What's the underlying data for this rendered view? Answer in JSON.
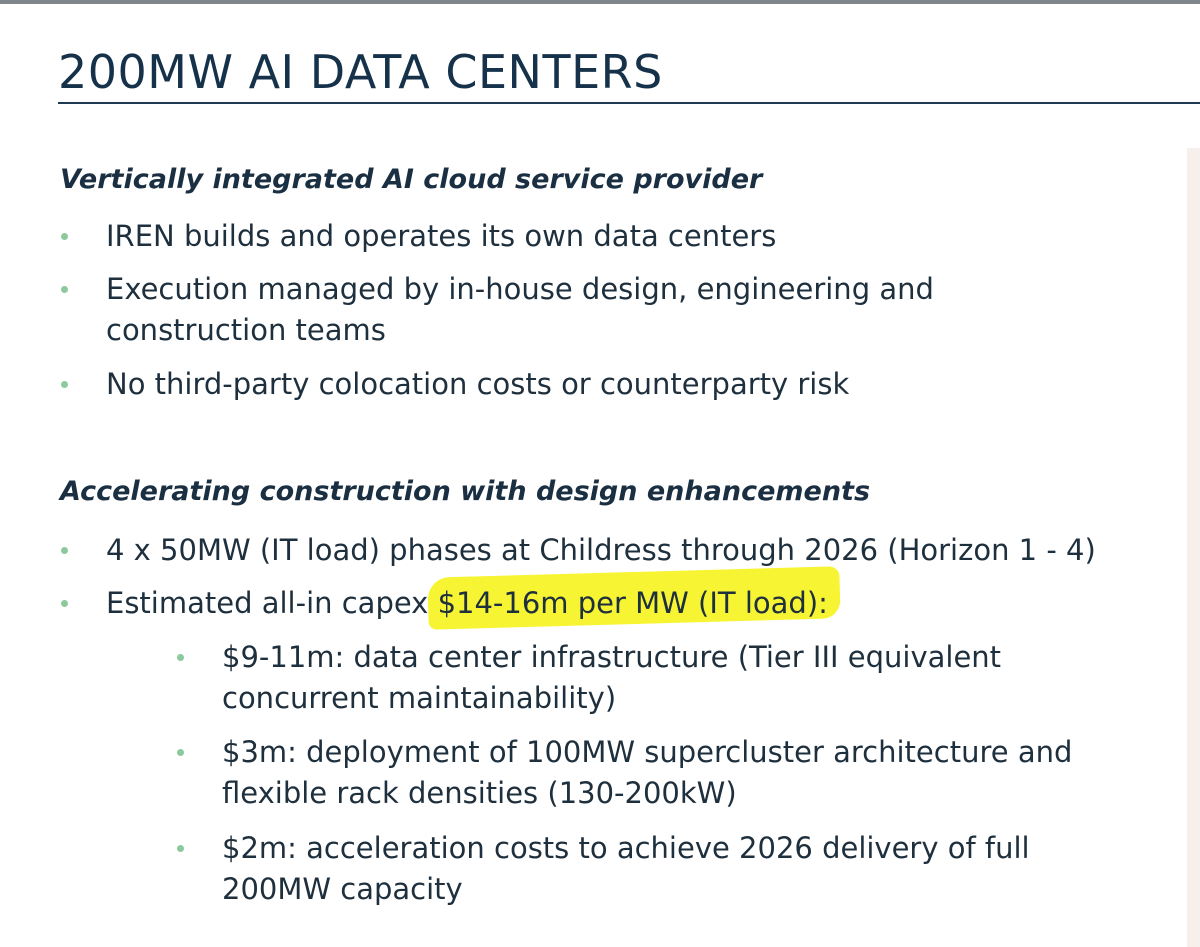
{
  "title": "200MW AI DATA CENTERS",
  "section1": {
    "heading": "Vertically integrated AI cloud service provider",
    "bullets": [
      "IREN builds and operates its own data centers",
      [
        "Execution managed by in-house design, engineering and",
        "construction teams"
      ],
      "No third-party colocation costs or counterparty risk"
    ]
  },
  "section2": {
    "heading": "Accelerating construction with design enhancements",
    "bullets": [
      "4 x 50MW (IT load) phases at Childress through 2026 (Horizon 1 - 4)",
      {
        "prefix": "Estimated all-in capex ",
        "highlight": "$14-16m per MW (IT load)",
        "suffix": ":"
      }
    ],
    "sub_bullets": [
      [
        "$9-11m: data center infrastructure (Tier III equivalent",
        "concurrent maintainability)"
      ],
      [
        "$3m: deployment of 100MW supercluster architecture and",
        "flexible rack densities (130-200kW)"
      ],
      [
        "$2m: acceleration costs to achieve 2026 delivery of full",
        "200MW capacity"
      ]
    ]
  },
  "colors": {
    "title": "#15324a",
    "bullet": "#8cc99c",
    "highlight": "#f7f533"
  }
}
